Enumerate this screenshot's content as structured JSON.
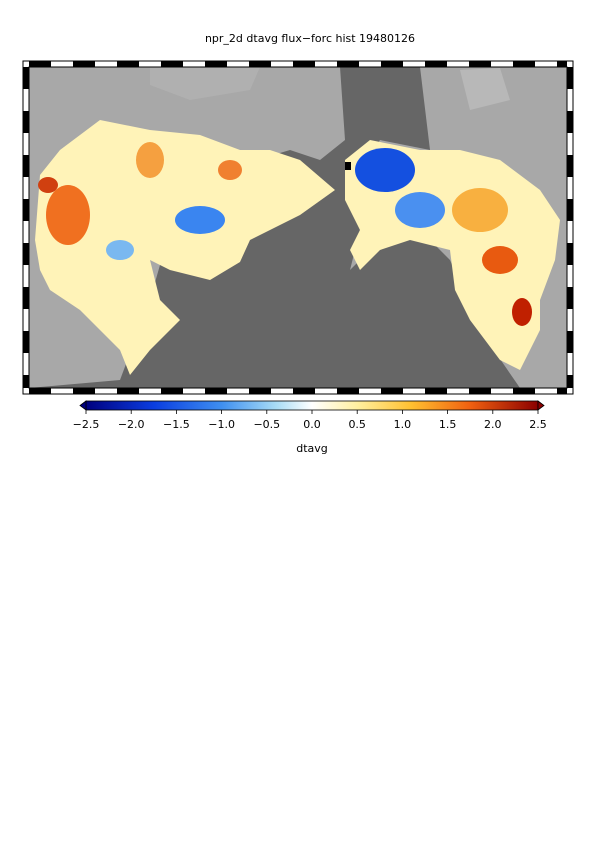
{
  "title": "npr_2d dtavg flux−forc hist 19480126",
  "colorbar": {
    "label": "dtavg",
    "range": [
      -2.5,
      2.5
    ],
    "ticks": [
      {
        "value": -2.5,
        "label": "−2.5"
      },
      {
        "value": -2.0,
        "label": "−2.0"
      },
      {
        "value": -1.5,
        "label": "−1.5"
      },
      {
        "value": -1.0,
        "label": "−1.0"
      },
      {
        "value": -0.5,
        "label": "−0.5"
      },
      {
        "value": 0.0,
        "label": "0.0"
      },
      0.5,
      {
        "value": 1.0,
        "label": "1.0"
      },
      1.5,
      {
        "value": 2.0,
        "label": "2.0"
      },
      2.5
    ]
  }
}
